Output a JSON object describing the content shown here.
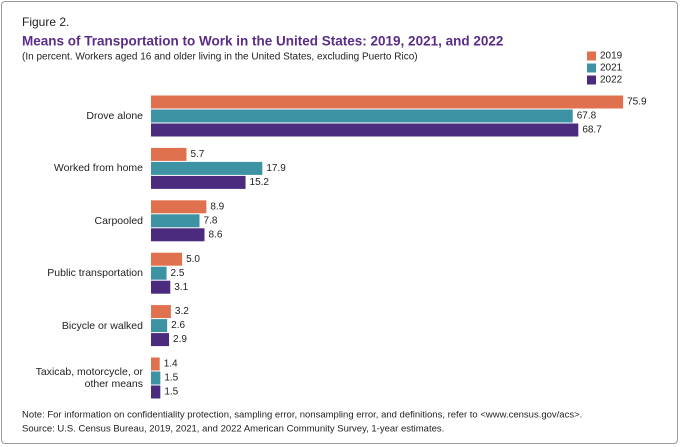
{
  "figure_label": "Figure 2.",
  "chart_data": {
    "type": "bar",
    "orientation": "horizontal",
    "title": "Means of Transportation to Work in the United States: 2019, 2021, and 2022",
    "subtitle": "(In percent. Workers aged 16 and older living in the United States, excluding Puerto Rico)",
    "categories": [
      "Drove alone",
      "Worked from home",
      "Carpooled",
      "Public transportation",
      "Bicycle or walked",
      "Taxicab, motorcycle, or other means"
    ],
    "series": [
      {
        "name": "2019",
        "color": "#e0714f",
        "values": [
          75.9,
          5.7,
          8.9,
          5.0,
          3.2,
          1.4
        ],
        "value_labels": [
          "75.9",
          "5.7",
          "8.9",
          "5.0",
          "3.2",
          "1.4"
        ]
      },
      {
        "name": "2021",
        "color": "#3d93a4",
        "values": [
          67.8,
          17.9,
          7.8,
          2.5,
          2.6,
          1.5
        ],
        "value_labels": [
          "67.8",
          "17.9",
          "7.8",
          "2.5",
          "2.6",
          "1.5"
        ]
      },
      {
        "name": "2022",
        "color": "#4a2b7e",
        "values": [
          68.7,
          15.2,
          8.6,
          3.1,
          2.9,
          1.5
        ],
        "value_labels": [
          "68.7",
          "15.2",
          "8.6",
          "3.1",
          "2.9",
          "1.5"
        ]
      }
    ],
    "legend": "top-right"
  },
  "notes": [
    "Note: For information on confidentiality protection, sampling error, nonsampling error, and definitions, refer to <www.census.gov/acs>.",
    "Source: U.S. Census Bureau, 2019, 2021, and 2022 American Community Survey, 1-year estimates."
  ]
}
